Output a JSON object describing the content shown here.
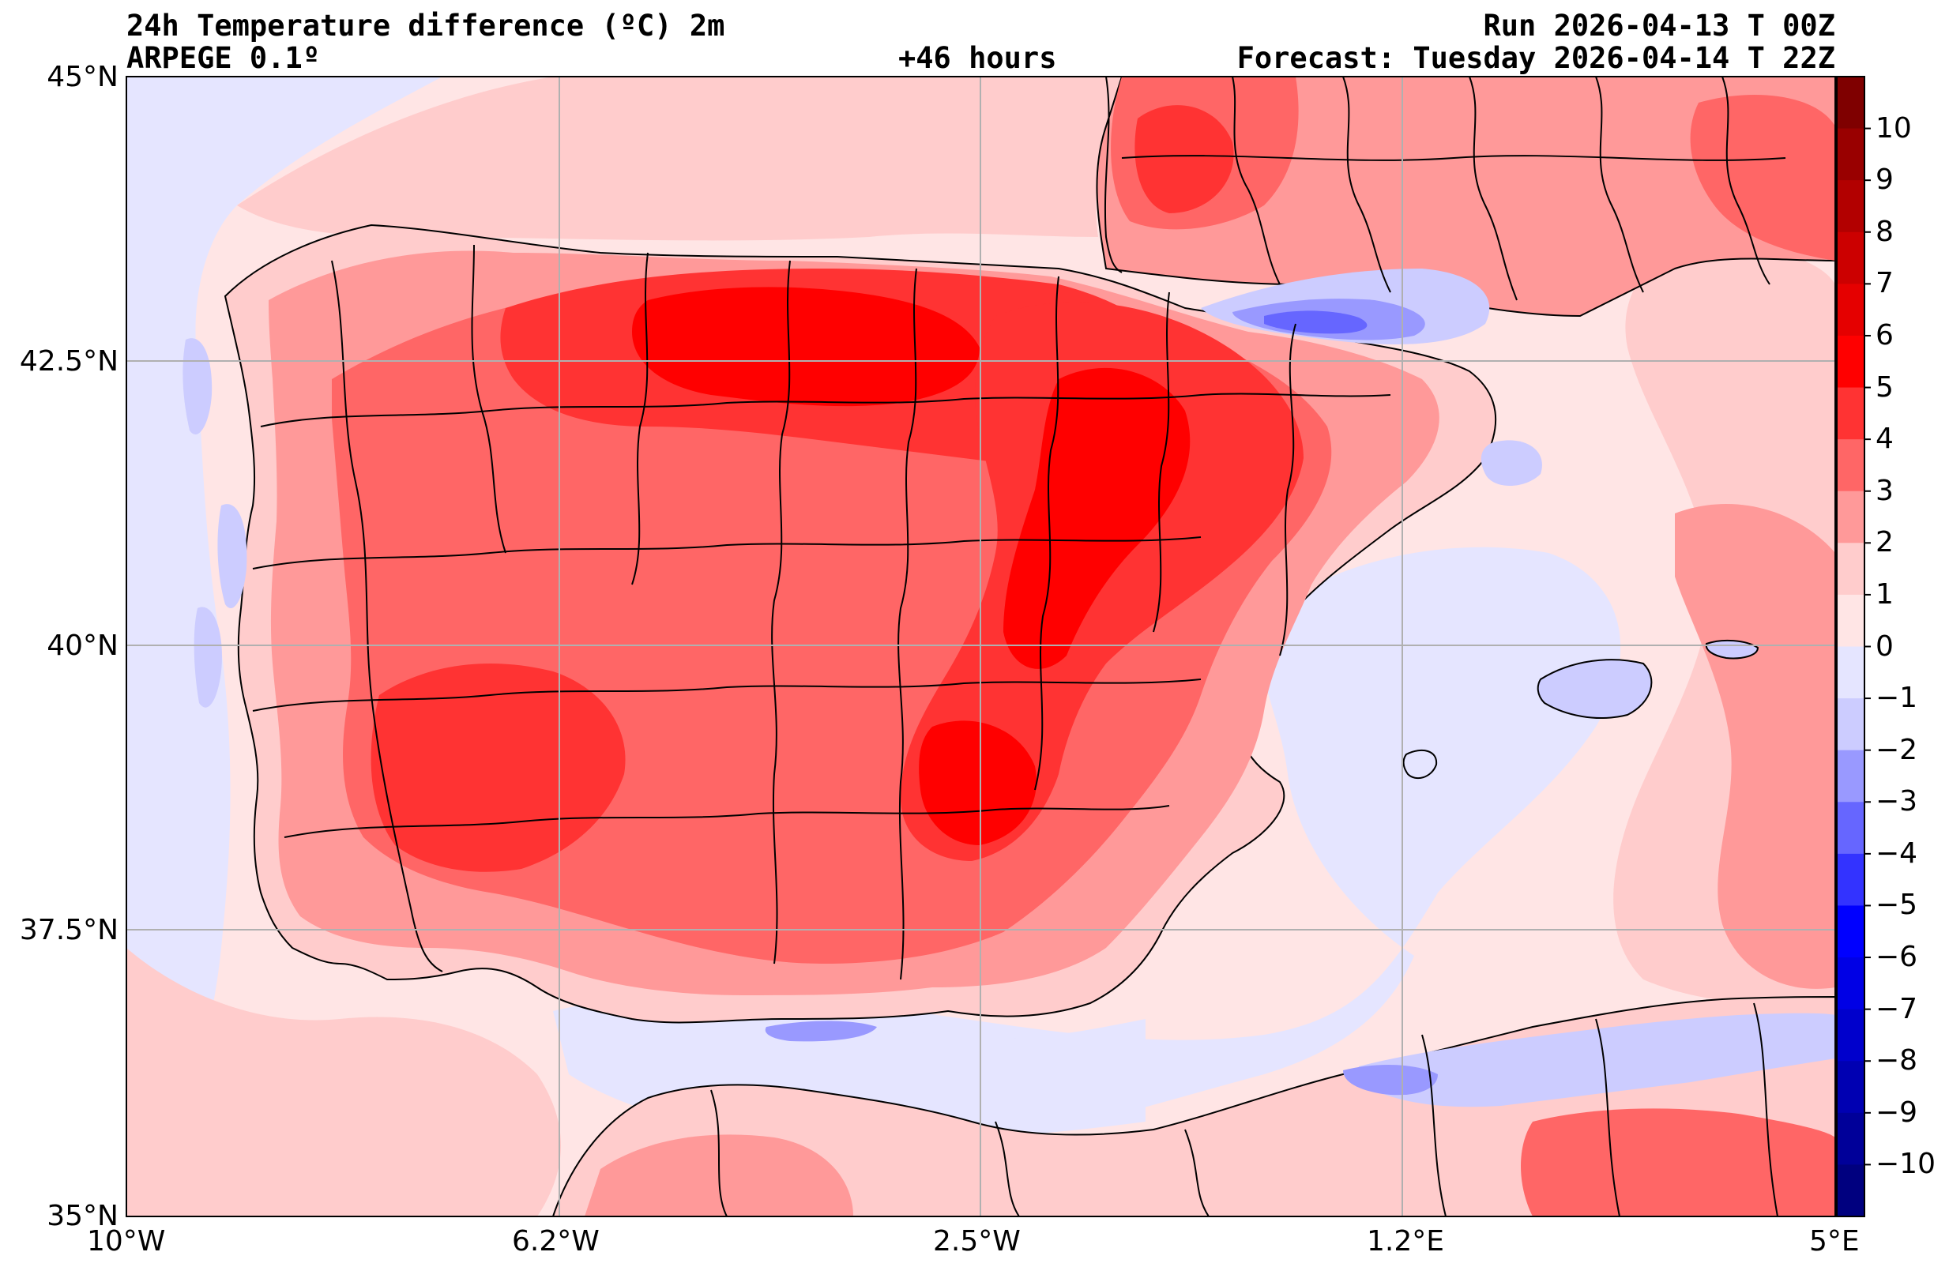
{
  "header": {
    "title": "24h Temperature difference (ºC) 2m",
    "model": "ARPEGE 0.1º",
    "lead": "+46 hours",
    "run": "Run 2026-04-13 T 00Z",
    "forecast": "Forecast: Tuesday 2026-04-14 T 22Z"
  },
  "map": {
    "projection": "plate-carree",
    "lon_range": [
      -10,
      5
    ],
    "lat_range": [
      35,
      45
    ],
    "lat_ticks": [
      {
        "value": 45,
        "label": "45°N"
      },
      {
        "value": 42.5,
        "label": "42.5°N"
      },
      {
        "value": 40,
        "label": "40°N"
      },
      {
        "value": 37.5,
        "label": "37.5°N"
      },
      {
        "value": 35,
        "label": "35°N"
      }
    ],
    "lon_ticks": [
      {
        "value": -10,
        "label": "10°W"
      },
      {
        "value": -6.2,
        "label": "6.2°W"
      },
      {
        "value": -2.5,
        "label": "2.5°W"
      },
      {
        "value": 1.2,
        "label": "1.2°E"
      },
      {
        "value": 5,
        "label": "5°E"
      }
    ]
  },
  "colorbar": {
    "levels": [
      10,
      9,
      8,
      7,
      6,
      5,
      4,
      3,
      2,
      1,
      0,
      -1,
      -2,
      -3,
      -4,
      -5,
      -6,
      -7,
      -8,
      -9,
      -10
    ],
    "labels": [
      "10",
      "9",
      "8",
      "7",
      "6",
      "5",
      "4",
      "3",
      "2",
      "1",
      "0",
      "−1",
      "−2",
      "−3",
      "−4",
      "−5",
      "−6",
      "−7",
      "−8",
      "−9",
      "−10"
    ],
    "colors_top_to_bottom": [
      "#7f0000",
      "#990000",
      "#b20000",
      "#cc0000",
      "#e50000",
      "#ff0000",
      "#ff3333",
      "#ff6666",
      "#ff9999",
      "#ffcccc",
      "#ffe5e5",
      "#e5e5ff",
      "#ccccff",
      "#9999ff",
      "#6666ff",
      "#3333ff",
      "#0000ff",
      "#0000e5",
      "#0000cc",
      "#0000b2",
      "#000099",
      "#00007f"
    ]
  },
  "palette": {
    "sea_neutral": "#ffe5e5",
    "sea_cool": "#e5e5ff",
    "warm_1": "#ffcccc",
    "warm_2": "#ff9999",
    "warm_3": "#ff6666",
    "warm_4": "#ff3333",
    "warm_5": "#ff0000",
    "cool_1": "#ccccff",
    "cool_2": "#9999ff",
    "cool_3": "#6666ff",
    "cool_4": "#3333ff",
    "border": "#000000",
    "grid": "#b0b0b0"
  }
}
